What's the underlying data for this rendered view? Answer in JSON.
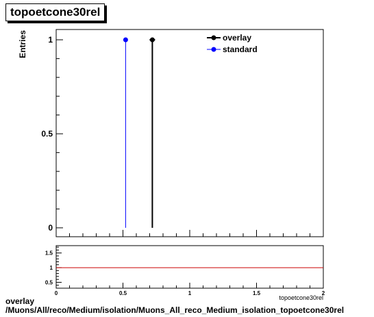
{
  "title": "topoetcone30rel",
  "caption": {
    "line1": "overlay",
    "line2": "/Muons/All/reco/Medium/isolation/Muons_All_reco_Medium_isolation_topoetcone30rel"
  },
  "colors": {
    "overlay": "#000000",
    "standard": "#0000ff",
    "ratio_line": "#cc0000"
  },
  "chart_data": [
    {
      "type": "scatter",
      "ylabel": "Entries",
      "xlim": [
        0,
        2
      ],
      "ylim": [
        0,
        1
      ],
      "y_ticks": [
        {
          "value": 0,
          "label": "0"
        },
        {
          "value": 0.5,
          "label": "0.5"
        },
        {
          "value": 1,
          "label": "1"
        }
      ],
      "legend_position": "top-right",
      "series": [
        {
          "name": "overlay",
          "color": "#000000",
          "points": [
            {
              "x": 0.72,
              "y": 1
            }
          ]
        },
        {
          "name": "standard",
          "color": "#0000ff",
          "points": [
            {
              "x": 0.52,
              "y": 1
            }
          ]
        }
      ]
    },
    {
      "type": "line",
      "xlabel": "topoetcone30rel",
      "xlim": [
        0,
        2
      ],
      "ylim": [
        0.3,
        1.75
      ],
      "x_ticks": [
        {
          "value": 0,
          "label": "0"
        },
        {
          "value": 0.5,
          "label": "0.5"
        },
        {
          "value": 1,
          "label": "1"
        },
        {
          "value": 1.5,
          "label": "1.5"
        },
        {
          "value": 2,
          "label": "2"
        }
      ],
      "y_ticks": [
        {
          "value": 0.5,
          "label": "0.5"
        },
        {
          "value": 1,
          "label": "1"
        },
        {
          "value": 1.5,
          "label": "1.5"
        }
      ],
      "reference_line": 1
    }
  ]
}
